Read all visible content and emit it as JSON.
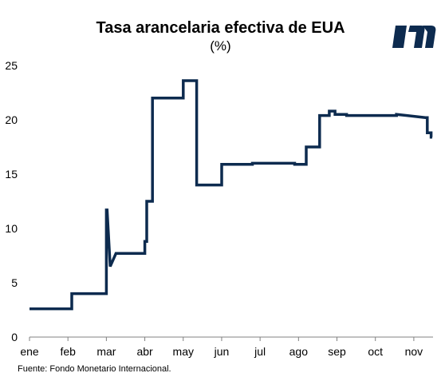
{
  "title": "Tasa arancelaria efectiva de EUA",
  "subtitle": "(%)",
  "source": "Fuente: Fondo Monetario Internacional.",
  "logo_icon": "bank-logo-icon",
  "colors": {
    "line": "#0d2b4f",
    "logo": "#0d2b4f",
    "text": "#000000"
  },
  "chart_data": {
    "type": "line",
    "title": "Tasa arancelaria efectiva de EUA",
    "subtitle": "(%)",
    "xlabel": "",
    "ylabel": "",
    "ylim": [
      0,
      25
    ],
    "yticks": [
      0,
      5,
      10,
      15,
      20,
      25
    ],
    "xlim": [
      0,
      10.5
    ],
    "xtick_labels": [
      "ene",
      "feb",
      "mar",
      "abr",
      "may",
      "jun",
      "jul",
      "ago",
      "sep",
      "oct",
      "nov"
    ],
    "grid": false,
    "legend": "none",
    "series": [
      {
        "x": [
          0,
          1.1,
          1.1,
          2.0,
          2.0,
          2.02,
          2.1,
          2.1,
          2.25,
          2.25,
          3.0,
          3.0,
          3.05,
          3.05,
          3.2,
          3.2,
          4.0,
          4.0,
          4.35,
          4.35,
          5.0,
          5.0,
          5.8,
          5.8,
          6.9,
          6.9,
          7.2,
          7.2,
          7.55,
          7.55,
          7.8,
          7.8,
          7.95,
          7.95,
          8.25,
          8.25,
          9.55,
          9.55,
          10.3,
          10.35,
          10.35,
          10.45,
          10.45,
          10.48
        ],
        "y": [
          2.6,
          2.6,
          4.0,
          4.0,
          11.7,
          11.7,
          6.5,
          6.5,
          7.7,
          7.7,
          7.7,
          8.8,
          8.8,
          12.5,
          12.5,
          22.0,
          22.0,
          23.6,
          23.6,
          14.0,
          14.0,
          15.9,
          15.9,
          16.0,
          16.0,
          15.9,
          15.9,
          17.5,
          17.5,
          20.4,
          20.4,
          20.8,
          20.8,
          20.5,
          20.5,
          20.4,
          20.4,
          20.5,
          20.2,
          20.2,
          18.8,
          18.8,
          18.4,
          18.4
        ]
      }
    ]
  }
}
